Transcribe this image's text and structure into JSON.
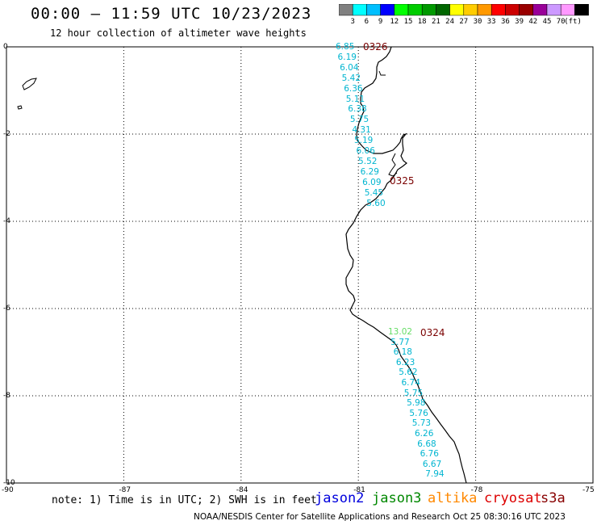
{
  "header": {
    "title": "00:00 – 11:59 UTC 10/23/2023",
    "subtitle": "12 hour collection of altimeter wave heights"
  },
  "color_scale": {
    "unit": "(ft)",
    "bins": [
      {
        "label": "",
        "color": "#808080"
      },
      {
        "label": "3",
        "color": "#00ffff"
      },
      {
        "label": "6",
        "color": "#00bfff"
      },
      {
        "label": "9",
        "color": "#0000ff"
      },
      {
        "label": "12",
        "color": "#00ff00"
      },
      {
        "label": "15",
        "color": "#00cc00"
      },
      {
        "label": "18",
        "color": "#009900"
      },
      {
        "label": "21",
        "color": "#006600"
      },
      {
        "label": "24",
        "color": "#ffff00"
      },
      {
        "label": "27",
        "color": "#ffcc00"
      },
      {
        "label": "30",
        "color": "#ff9900"
      },
      {
        "label": "33",
        "color": "#ff0000"
      },
      {
        "label": "36",
        "color": "#cc0000"
      },
      {
        "label": "39",
        "color": "#990000"
      },
      {
        "label": "42",
        "color": "#990099"
      },
      {
        "label": "45",
        "color": "#cc99ff"
      },
      {
        "label": "70",
        "color": "#ff99ff"
      },
      {
        "label": "",
        "color": "#000000"
      }
    ]
  },
  "axes": {
    "lat_labels": [
      "0",
      "-2",
      "-4",
      "-6",
      "-8",
      "-10"
    ],
    "lon_labels": [
      "-90",
      "-87",
      "-84",
      "-81",
      "-78",
      "-75"
    ],
    "grid": "dotted"
  },
  "passes": [
    {
      "label": "0326",
      "values": [
        "6.85",
        "6.19",
        "6.04",
        "5.42",
        "6.36",
        "5.11",
        "6.38",
        "5.75",
        "4.31",
        "5.19",
        "6.06",
        "5.52",
        "6.29",
        "6.09",
        "5.45",
        "5.60"
      ]
    },
    {
      "label": "0325",
      "values": []
    },
    {
      "label": "0324",
      "values": [
        "13.02",
        "5.77",
        "6.18",
        "6.23",
        "5.62",
        "6.74",
        "5.75",
        "5.98",
        "5.76",
        "5.73",
        "6.26",
        "6.68",
        "6.76",
        "6.67",
        "7.94"
      ]
    }
  ],
  "footer": {
    "note": "note: 1) Time is in UTC; 2) SWH is in feet",
    "satellites": [
      {
        "name": "jason2",
        "color": "#0000dd"
      },
      {
        "name": "jason3",
        "color": "#008800"
      },
      {
        "name": "altika",
        "color": "#ff8800"
      },
      {
        "name": "cryosat",
        "color": "#dd0000"
      },
      {
        "name": "s3a",
        "color": "#880000"
      }
    ],
    "credit": "NOAA/NESDIS Center for Satellite Applications and Research    Oct 25 08:30:16 UTC 2023"
  }
}
